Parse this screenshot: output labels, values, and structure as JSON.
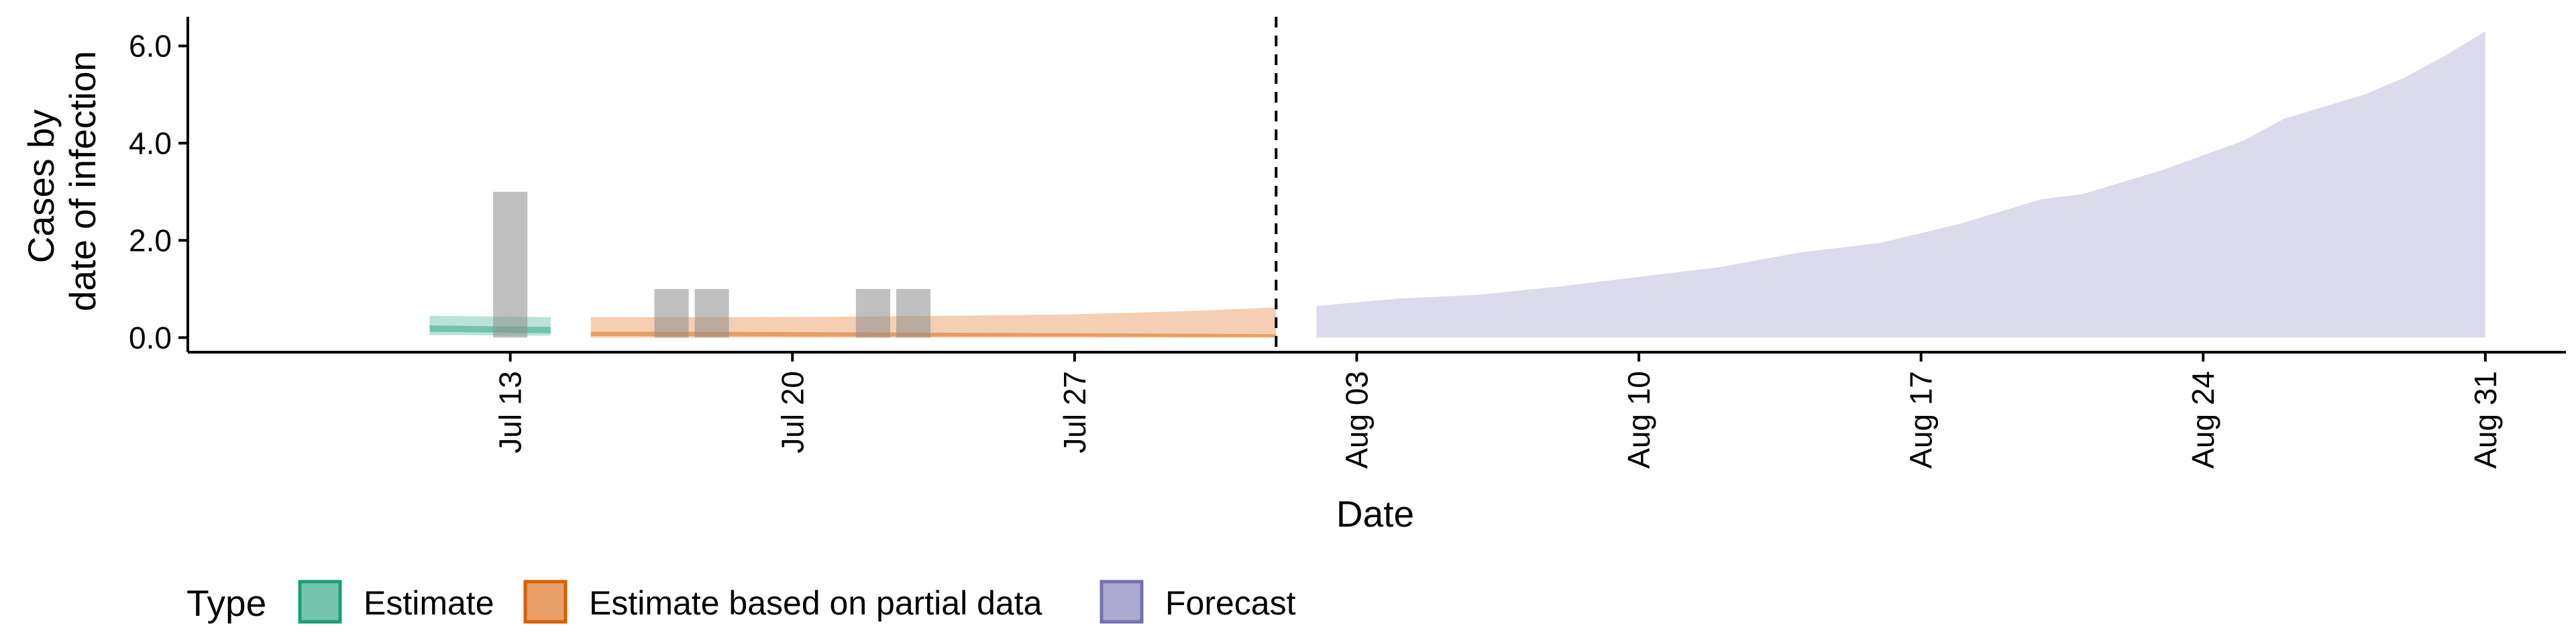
{
  "chart_data": {
    "type": "area",
    "xlabel": "Date",
    "ylabel_lines": [
      "Cases by",
      "date of infection"
    ],
    "ylim": [
      -0.3,
      6.6
    ],
    "xlim": [
      "2020-07-05",
      "2020-09-02"
    ],
    "yticks": [
      {
        "value": 0,
        "label": "0.0"
      },
      {
        "value": 2,
        "label": "2.0"
      },
      {
        "value": 4,
        "label": "4.0"
      },
      {
        "value": 6,
        "label": "6.0"
      }
    ],
    "xticks": [
      {
        "date": "2020-07-13",
        "label": "Jul 13"
      },
      {
        "date": "2020-07-20",
        "label": "Jul 20"
      },
      {
        "date": "2020-07-27",
        "label": "Jul 27"
      },
      {
        "date": "2020-08-03",
        "label": "Aug 03"
      },
      {
        "date": "2020-08-10",
        "label": "Aug 10"
      },
      {
        "date": "2020-08-17",
        "label": "Aug 17"
      },
      {
        "date": "2020-08-24",
        "label": "Aug 24"
      },
      {
        "date": "2020-08-31",
        "label": "Aug 31"
      }
    ],
    "forecast_start": "2020-08-01",
    "reported_cases": [
      {
        "date": "2020-07-13",
        "value": 3
      },
      {
        "date": "2020-07-17",
        "value": 1
      },
      {
        "date": "2020-07-18",
        "value": 1
      },
      {
        "date": "2020-07-22",
        "value": 1
      },
      {
        "date": "2020-07-23",
        "value": 1
      }
    ],
    "series": [
      {
        "name": "Estimate",
        "color": "#1b9e77",
        "points": [
          {
            "date": "2020-07-11",
            "lo90": 0.05,
            "hi90": 0.45,
            "lo50": 0.12,
            "hi50": 0.25
          },
          {
            "date": "2020-07-12",
            "lo90": 0.05,
            "hi90": 0.44,
            "lo50": 0.11,
            "hi50": 0.24
          },
          {
            "date": "2020-07-13",
            "lo90": 0.04,
            "hi90": 0.43,
            "lo50": 0.1,
            "hi50": 0.23
          },
          {
            "date": "2020-07-14",
            "lo90": 0.04,
            "hi90": 0.42,
            "lo50": 0.09,
            "hi50": 0.22
          }
        ]
      },
      {
        "name": "Estimate based on partial data",
        "color": "#d95f02",
        "points": [
          {
            "date": "2020-07-15",
            "lo90": 0.0,
            "hi90": 0.42,
            "lo50": 0.03,
            "hi50": 0.12
          },
          {
            "date": "2020-07-18",
            "lo90": 0.0,
            "hi90": 0.42,
            "lo50": 0.03,
            "hi50": 0.12
          },
          {
            "date": "2020-07-21",
            "lo90": 0.0,
            "hi90": 0.43,
            "lo50": 0.02,
            "hi50": 0.11
          },
          {
            "date": "2020-07-24",
            "lo90": 0.0,
            "hi90": 0.45,
            "lo50": 0.02,
            "hi50": 0.1
          },
          {
            "date": "2020-07-27",
            "lo90": 0.0,
            "hi90": 0.48,
            "lo50": 0.02,
            "hi50": 0.09
          },
          {
            "date": "2020-07-30",
            "lo90": 0.0,
            "hi90": 0.55,
            "lo50": 0.01,
            "hi50": 0.08
          },
          {
            "date": "2020-08-01",
            "lo90": 0.0,
            "hi90": 0.62,
            "lo50": 0.01,
            "hi50": 0.07
          }
        ]
      },
      {
        "name": "Forecast",
        "color": "#7570b3",
        "points": [
          {
            "date": "2020-08-02",
            "lo90": 0.0,
            "hi90": 0.65
          },
          {
            "date": "2020-08-04",
            "lo90": 0.0,
            "hi90": 0.8
          },
          {
            "date": "2020-08-06",
            "lo90": 0.0,
            "hi90": 0.88
          },
          {
            "date": "2020-08-08",
            "lo90": 0.0,
            "hi90": 1.05
          },
          {
            "date": "2020-08-10",
            "lo90": 0.0,
            "hi90": 1.25
          },
          {
            "date": "2020-08-12",
            "lo90": 0.0,
            "hi90": 1.45
          },
          {
            "date": "2020-08-14",
            "lo90": 0.0,
            "hi90": 1.75
          },
          {
            "date": "2020-08-16",
            "lo90": 0.0,
            "hi90": 1.95
          },
          {
            "date": "2020-08-18",
            "lo90": 0.0,
            "hi90": 2.35
          },
          {
            "date": "2020-08-20",
            "lo90": 0.0,
            "hi90": 2.85
          },
          {
            "date": "2020-08-21",
            "lo90": 0.0,
            "hi90": 2.95
          },
          {
            "date": "2020-08-23",
            "lo90": 0.0,
            "hi90": 3.45
          },
          {
            "date": "2020-08-25",
            "lo90": 0.0,
            "hi90": 4.05
          },
          {
            "date": "2020-08-26",
            "lo90": 0.0,
            "hi90": 4.5
          },
          {
            "date": "2020-08-28",
            "lo90": 0.0,
            "hi90": 5.0
          },
          {
            "date": "2020-08-29",
            "lo90": 0.0,
            "hi90": 5.35
          },
          {
            "date": "2020-08-30",
            "lo90": 0.0,
            "hi90": 5.8
          },
          {
            "date": "2020-08-31",
            "lo90": 0.0,
            "hi90": 6.3
          }
        ]
      }
    ],
    "legend": {
      "position": "bottom",
      "title": "Type",
      "items": [
        {
          "label": "Estimate",
          "color": "#1b9e77"
        },
        {
          "label": "Estimate based on partial data",
          "color": "#d95f02"
        },
        {
          "label": "Forecast",
          "color": "#7570b3"
        }
      ]
    }
  }
}
